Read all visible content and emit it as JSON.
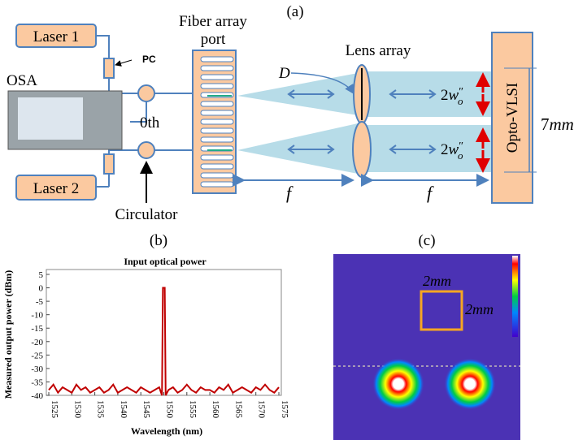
{
  "diagram": {
    "panel": "(a)",
    "laser1": "Laser 1",
    "laser2": "Laser 2",
    "pc": "PC",
    "osa": "OSA",
    "zeroth": "0th",
    "circulator": "Circulator",
    "fiber_port": [
      "Fiber array",
      "port"
    ],
    "lens_array": "Lens array",
    "d": "D",
    "focal": [
      "f",
      "f"
    ],
    "waist_labels": [
      {
        "coef": "2",
        "var": "w",
        "prime": "″",
        "sub": "o"
      },
      {
        "coef": "2",
        "var": "w",
        "prime": "″",
        "sub": "o"
      }
    ],
    "vlsi": "Opto-VLSI",
    "width": {
      "num": "7",
      "unit": "mm"
    }
  },
  "panel_b": "(b)",
  "chart_data": {
    "type": "line",
    "title": "Input optical power",
    "x_label": "Wavelength (nm)",
    "y_label": "Measured output power (dBm)",
    "x": [
      1525,
      1526,
      1527,
      1528,
      1529,
      1530,
      1531,
      1532,
      1533,
      1534,
      1535,
      1536,
      1537,
      1538,
      1539,
      1540,
      1541,
      1542,
      1543,
      1544,
      1545,
      1546,
      1547,
      1548,
      1549,
      1549.6,
      1549.8,
      1550.2,
      1550.4,
      1551,
      1552,
      1553,
      1554,
      1555,
      1556,
      1557,
      1558,
      1559,
      1560,
      1561,
      1562,
      1563,
      1564,
      1565,
      1566,
      1567,
      1568,
      1569,
      1570,
      1571,
      1572,
      1573,
      1574,
      1575
    ],
    "series": [
      {
        "name": "Input optical power",
        "color": "#c00000",
        "values": [
          -38,
          -36,
          -39,
          -37,
          -38,
          -39,
          -36,
          -38,
          -37,
          -39,
          -38,
          -37,
          -39,
          -38,
          -36,
          -39,
          -38,
          -37,
          -38,
          -39,
          -37,
          -38,
          -39,
          -38,
          -37,
          -40,
          0,
          0,
          -40,
          -38,
          -37,
          -39,
          -38,
          -36,
          -38,
          -39,
          -37,
          -38,
          -38,
          -39,
          -37,
          -38,
          -36,
          -39,
          -38,
          -37,
          -38,
          -39,
          -37,
          -38,
          -36,
          -38,
          -39,
          -37
        ]
      }
    ],
    "xlim": [
      1525,
      1575
    ],
    "ylim": [
      -40,
      5
    ],
    "xticks": [
      1525,
      1530,
      1535,
      1540,
      1545,
      1550,
      1555,
      1560,
      1565,
      1570,
      1575
    ],
    "yticks": [
      5,
      0,
      -5,
      -10,
      -15,
      -20,
      -25,
      -30,
      -35,
      -40
    ]
  },
  "panel_c": {
    "panel": "(c)",
    "square_width": "2mm",
    "square_height": "2mm"
  }
}
